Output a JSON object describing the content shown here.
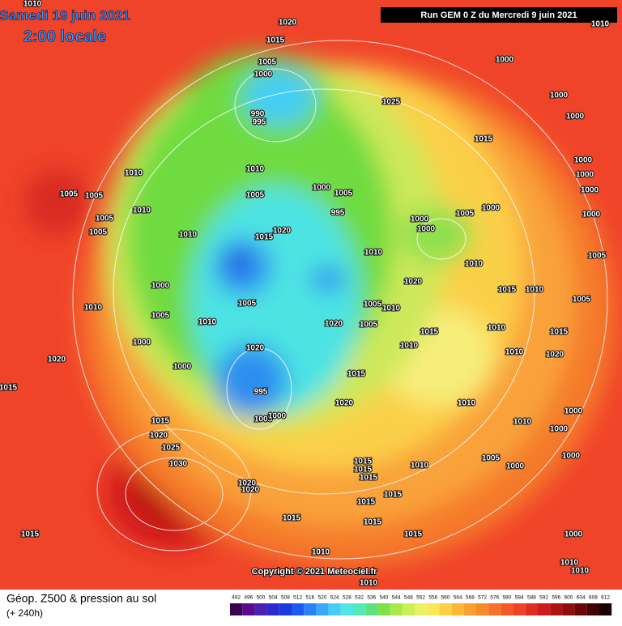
{
  "header": {
    "date": "Samedi 19 juin 2021",
    "time": "2:00 locale",
    "run": "Run GEM 0 Z du Mercredi 9 juin 2021"
  },
  "copyright": "Copyright © 2021 Meteociel.fr",
  "footer": {
    "title": "Géop. Z500 & pression au sol",
    "lead": "(+ 240h)"
  },
  "legend": {
    "values": [
      492,
      496,
      500,
      504,
      508,
      512,
      516,
      520,
      524,
      528,
      532,
      536,
      540,
      544,
      548,
      552,
      556,
      560,
      564,
      568,
      572,
      576,
      580,
      584,
      588,
      592,
      596,
      600,
      604,
      608,
      612
    ],
    "colors": [
      "#3a0050",
      "#5a0a8a",
      "#4b1fb0",
      "#2a2ad0",
      "#1a3ae0",
      "#1b5af0",
      "#2a80f5",
      "#38a8f8",
      "#45cdf5",
      "#50e6e6",
      "#55e8b8",
      "#5fe07a",
      "#7fe04a",
      "#a8e84a",
      "#cdef55",
      "#ecf268",
      "#fbe75a",
      "#fbd045",
      "#fbb838",
      "#f9a030",
      "#f88a2c",
      "#f6722a",
      "#f35a28",
      "#ef4226",
      "#e12c22",
      "#cc1c1c",
      "#b01212",
      "#900c0c",
      "#6a0606",
      "#400202",
      "#1a0000"
    ]
  },
  "isobars": [
    "1010",
    "1020",
    "1015",
    "1005",
    "1000",
    "990",
    "995",
    "1025",
    "1000",
    "1000",
    "1000",
    "1015",
    "1010",
    "1010",
    "1005",
    "1000",
    "1005",
    "995",
    "1010",
    "1005",
    "1005",
    "1010",
    "1005",
    "1005",
    "1010",
    "1020",
    "1015",
    "1000",
    "1000",
    "1005",
    "1000",
    "1000",
    "1000",
    "1000",
    "1000",
    "1005",
    "1010",
    "1010",
    "1020",
    "1015",
    "1010",
    "1005",
    "1000",
    "1010",
    "1005",
    "1005",
    "1005",
    "1010",
    "1020",
    "1005",
    "1015",
    "1010",
    "1015",
    "1010",
    "1000",
    "1020",
    "1010",
    "1010",
    "1020",
    "1020",
    "1000",
    "1015",
    "995",
    "1020",
    "1010",
    "1015",
    "1015",
    "1005",
    "1000",
    "1010",
    "1000",
    "1000",
    "1020",
    "1025",
    "1030",
    "1015",
    "1015",
    "1015",
    "1010",
    "1005",
    "1000",
    "1000",
    "1020",
    "1020",
    "1015",
    "1015",
    "1015",
    "1015",
    "1015",
    "1015",
    "1000",
    "1010",
    "1010",
    "1010",
    "1010"
  ]
}
